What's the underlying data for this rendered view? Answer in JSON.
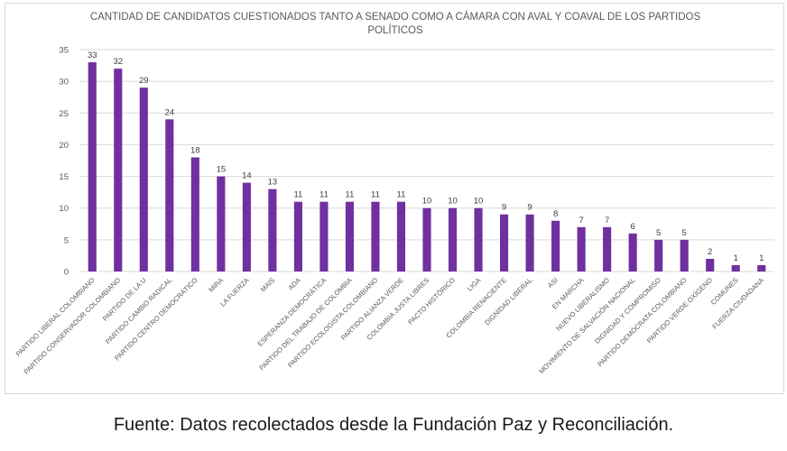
{
  "chart_data": {
    "type": "bar",
    "title_lines": [
      "CANTIDAD DE CANDIDATOS CUESTIONADOS TANTO A SENADO COMO A CÁMARA CON AVAL Y COAVAL DE LOS PARTIDOS",
      "POLÍTICOS"
    ],
    "categories": [
      "PARTIDO LIBERAL COLOMBIANO",
      "PARTIDO CONSERVADOR COLOMBIANO",
      "PARTIDO DE LA U",
      "PARTIDO CAMBIO RADICAL",
      "PARTIDO CENTRO DEMOCRÁTICO",
      "MIRA",
      "LA FUERZA",
      "MAIS",
      "ADA",
      "ESPERANZA DEMOCRÁTICA",
      "PARTIDO DEL TRABAJO DE COLOMBIA",
      "PARTIDO ECOLOGISTA COLOMBIANO",
      "PARTIDO ALIANZA VERDE",
      "COLOMBIA JUSTA LIBRES",
      "PACTO HISTÓRICO",
      "LIGA",
      "COLOMBIA RENACIENTE",
      "DIGNIDAD LIBERAL",
      "ASI",
      "EN MARCHA",
      "NUEVO LIBERALISMO",
      "MOVIMIENTO DE SALVACIÓN NACIONAL",
      "DIGNIDAD Y COMPROMISO",
      "PARTIDO DEMÓCRATA COLOMBIANO",
      "PARTIDO VERDE OXÍGENO",
      "COMUNES",
      "FUERZA CIUDADANA"
    ],
    "values": [
      33,
      32,
      29,
      24,
      18,
      15,
      14,
      13,
      11,
      11,
      11,
      11,
      11,
      10,
      10,
      10,
      9,
      9,
      8,
      7,
      7,
      6,
      5,
      5,
      2,
      1,
      1
    ],
    "xlabel": "",
    "ylabel": "",
    "ylim": [
      0,
      35
    ],
    "yticks": [
      0,
      5,
      10,
      15,
      20,
      25,
      30,
      35
    ],
    "grid": true,
    "legend": "none",
    "bar_color": "#7030a0"
  },
  "source_note": "Fuente: Datos recolectados desde la Fundación Paz y Reconciliación."
}
